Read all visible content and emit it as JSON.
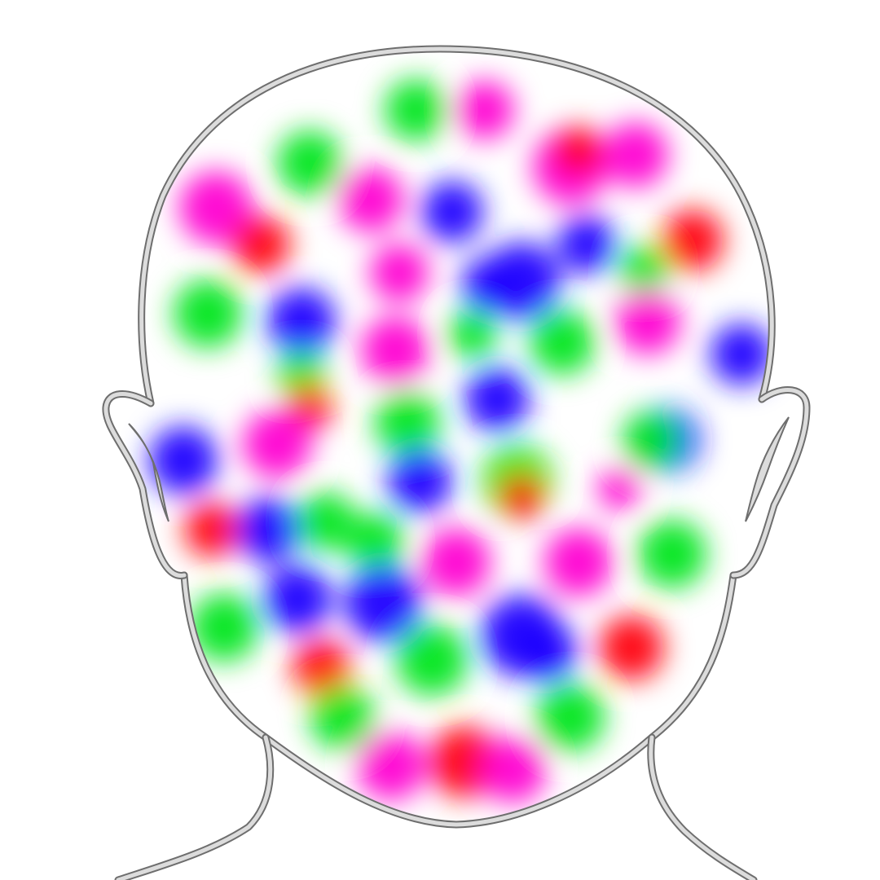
{
  "figure": {
    "subject": "head-outline",
    "colors": {
      "pink": "#ff00d2",
      "red": "#ff0010",
      "green": "#00e61e",
      "blue": "#1e00ff",
      "outline_stroke": "#6e6e6e",
      "outline_fill": "#dcdcdc",
      "background": "#ffffff"
    },
    "spot_count": 80
  }
}
